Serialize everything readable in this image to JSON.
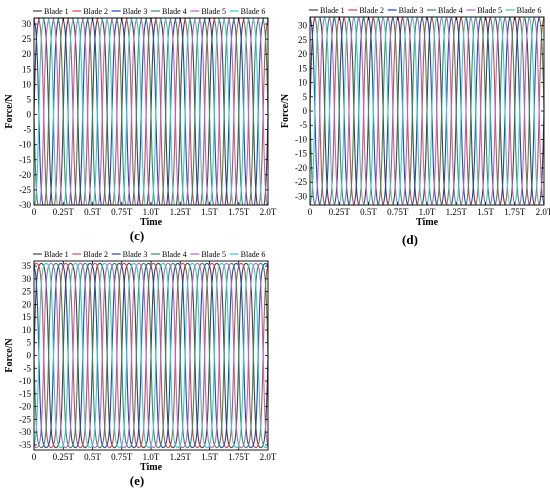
{
  "colors": {
    "series": [
      "#444444",
      "#d04a4a",
      "#2244bb",
      "#3a8a5a",
      "#b565c8",
      "#33cccc"
    ]
  },
  "charts": [
    {
      "label": "(c)",
      "legend_items": [
        "Blade 1",
        "Blade 2",
        "Blade 3",
        "Blade 4",
        "Blade 5",
        "Blade 6"
      ],
      "x_ticks": [
        "0",
        "0.25T",
        "0.5T",
        "0.75T",
        "1.0T",
        "1.25T",
        "1.5T",
        "1.75T",
        "2.0T"
      ],
      "y_ticks": [
        "30",
        "25",
        "20",
        "15",
        "10",
        "5",
        "0",
        "-5",
        "-10",
        "-15",
        "-20",
        "-25",
        "-30"
      ],
      "xlabel": "Time",
      "ylabel": "Force/N"
    },
    {
      "label": "(d)",
      "legend_items": [
        "Blade 1",
        "Blade 2",
        "Blade 3",
        "Blade 4",
        "Blade 5",
        "Blade 6"
      ],
      "x_ticks": [
        "0",
        "0.25T",
        "0.5T",
        "0.75T",
        "1.0T",
        "1.25T",
        "1.5T",
        "1.75T",
        "2.0T"
      ],
      "y_ticks": [
        "30",
        "25",
        "20",
        "15",
        "10",
        "5",
        "0",
        "-5",
        "-10",
        "-15",
        "-20",
        "-25",
        "-30"
      ],
      "xlabel": "Time",
      "ylabel": "Force/N"
    },
    {
      "label": "(e)",
      "legend_items": [
        "Blade 1",
        "Blade 2",
        "Blade 3",
        "Blade 4",
        "Blade 5",
        "Blade 6"
      ],
      "x_ticks": [
        "0",
        "0.25T",
        "0.5T",
        "0.75T",
        "1.0T",
        "1.25T",
        "1.5T",
        "1.75T",
        "2.0T"
      ],
      "y_ticks": [
        "35",
        "30",
        "25",
        "20",
        "15",
        "10",
        "5",
        "0",
        "-5",
        "-10",
        "-15",
        "-20",
        "-25",
        "-30",
        "-35"
      ],
      "xlabel": "Time",
      "ylabel": "Force/N"
    }
  ],
  "chart_data": [
    {
      "type": "line",
      "panel": "(c)",
      "xlabel": "Time",
      "ylabel": "Force/N",
      "xlim": [
        0,
        2
      ],
      "ylim": [
        -30,
        32
      ],
      "x_tick_values": [
        0,
        0.25,
        0.5,
        0.75,
        1.0,
        1.25,
        1.5,
        1.75,
        2.0
      ],
      "y_tick_values": [
        30,
        25,
        20,
        15,
        10,
        5,
        0,
        -5,
        -10,
        -15,
        -20,
        -25,
        -30
      ],
      "legend_placement": "top",
      "grid": false,
      "series": [
        {
          "name": "Blade 1",
          "amplitude": 30.5,
          "cycles_per_T": 4,
          "phase_deg": 0
        },
        {
          "name": "Blade 2",
          "amplitude": 30.5,
          "cycles_per_T": 4,
          "phase_deg": 60
        },
        {
          "name": "Blade 3",
          "amplitude": 30.5,
          "cycles_per_T": 4,
          "phase_deg": 120
        },
        {
          "name": "Blade 4",
          "amplitude": 30.5,
          "cycles_per_T": 4,
          "phase_deg": 180
        },
        {
          "name": "Blade 5",
          "amplitude": 30.5,
          "cycles_per_T": 4,
          "phase_deg": 240
        },
        {
          "name": "Blade 6",
          "amplitude": 30.5,
          "cycles_per_T": 4,
          "phase_deg": 300
        }
      ]
    },
    {
      "type": "line",
      "panel": "(d)",
      "xlabel": "Time",
      "ylabel": "Force/N",
      "xlim": [
        0,
        2
      ],
      "ylim": [
        -33,
        33
      ],
      "x_tick_values": [
        0,
        0.25,
        0.5,
        0.75,
        1.0,
        1.25,
        1.5,
        1.75,
        2.0
      ],
      "y_tick_values": [
        30,
        25,
        20,
        15,
        10,
        5,
        0,
        -5,
        -10,
        -15,
        -20,
        -25,
        -30
      ],
      "legend_placement": "top",
      "grid": false,
      "series": [
        {
          "name": "Blade 1",
          "amplitude": 32,
          "cycles_per_T": 4,
          "phase_deg": 0
        },
        {
          "name": "Blade 2",
          "amplitude": 32,
          "cycles_per_T": 4,
          "phase_deg": 60
        },
        {
          "name": "Blade 3",
          "amplitude": 32,
          "cycles_per_T": 4,
          "phase_deg": 120
        },
        {
          "name": "Blade 4",
          "amplitude": 32,
          "cycles_per_T": 4,
          "phase_deg": 180
        },
        {
          "name": "Blade 5",
          "amplitude": 32,
          "cycles_per_T": 4,
          "phase_deg": 240
        },
        {
          "name": "Blade 6",
          "amplitude": 32,
          "cycles_per_T": 4,
          "phase_deg": 300
        }
      ]
    },
    {
      "type": "line",
      "panel": "(e)",
      "xlabel": "Time",
      "ylabel": "Force/N",
      "xlim": [
        0,
        2
      ],
      "ylim": [
        -37,
        37
      ],
      "x_tick_values": [
        0,
        0.25,
        0.5,
        0.75,
        1.0,
        1.25,
        1.5,
        1.75,
        2.0
      ],
      "y_tick_values": [
        35,
        30,
        25,
        20,
        15,
        10,
        5,
        0,
        -5,
        -10,
        -15,
        -20,
        -25,
        -30,
        -35
      ],
      "legend_placement": "top",
      "grid": false,
      "series": [
        {
          "name": "Blade 1",
          "amplitude": 34,
          "cycles_per_T": 4,
          "phase_deg": 0
        },
        {
          "name": "Blade 2",
          "amplitude": 34,
          "cycles_per_T": 4,
          "phase_deg": 60
        },
        {
          "name": "Blade 3",
          "amplitude": 34,
          "cycles_per_T": 4,
          "phase_deg": 120
        },
        {
          "name": "Blade 4",
          "amplitude": 34,
          "cycles_per_T": 4,
          "phase_deg": 180
        },
        {
          "name": "Blade 5",
          "amplitude": 34,
          "cycles_per_T": 4,
          "phase_deg": 240
        },
        {
          "name": "Blade 6",
          "amplitude": 34,
          "cycles_per_T": 4,
          "phase_deg": 300
        }
      ]
    }
  ]
}
